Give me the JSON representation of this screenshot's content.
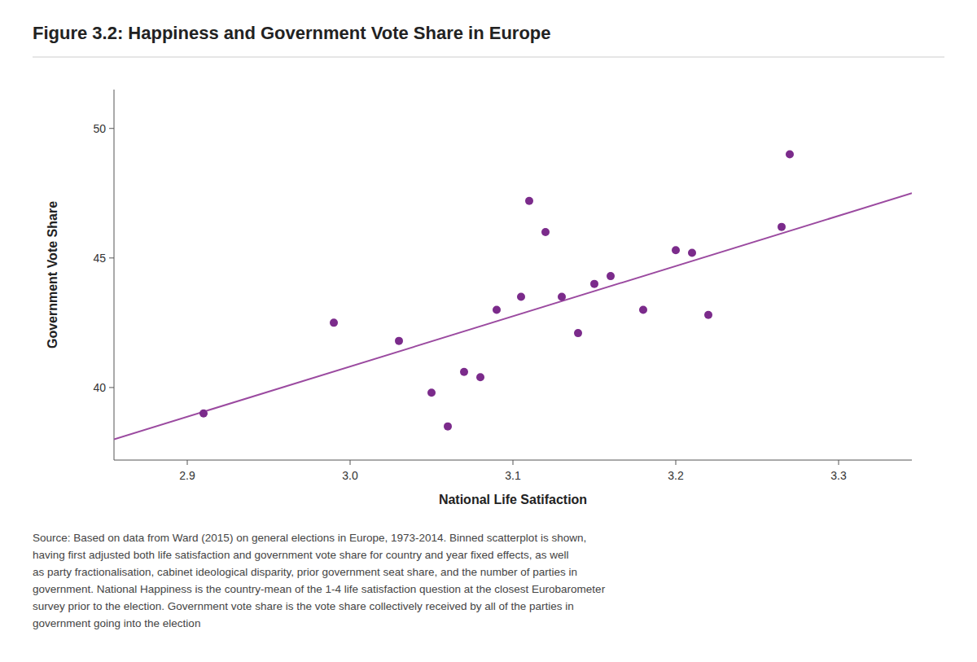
{
  "chart_data": {
    "type": "scatter",
    "title": "Figure 3.2: Happiness and Government Vote Share in Europe",
    "x_label": "National Life Satifaction",
    "y_label": "Government Vote Share",
    "series": [
      {
        "type": "scatter",
        "color": "#7B2B8B",
        "x": [
          2.91,
          2.99,
          3.03,
          3.05,
          3.06,
          3.07,
          3.08,
          3.09,
          3.105,
          3.11,
          3.12,
          3.13,
          3.14,
          3.15,
          3.16,
          3.18,
          3.2,
          3.21,
          3.22,
          3.265,
          3.27
        ],
        "values": [
          39.0,
          42.5,
          41.8,
          39.8,
          38.5,
          40.6,
          40.4,
          43.0,
          43.5,
          47.2,
          46.0,
          43.5,
          42.1,
          44.0,
          44.3,
          43.0,
          45.3,
          45.2,
          42.8,
          46.2,
          49.0
        ]
      },
      {
        "type": "line",
        "color": "#9B4AA0",
        "x": [
          2.855,
          3.345
        ],
        "values": [
          38.0,
          47.5
        ]
      }
    ],
    "xlim": [
      2.855,
      3.345
    ],
    "ylim": [
      37.2,
      51.5
    ],
    "xticks": [
      {
        "value": 2.9,
        "label": "2.9"
      },
      {
        "value": 3.0,
        "label": "3.0"
      },
      {
        "value": 3.1,
        "label": "3.1"
      },
      {
        "value": 3.2,
        "label": "3.2"
      },
      {
        "value": 3.3,
        "label": "3.3"
      }
    ],
    "yticks": [
      40,
      45,
      50
    ],
    "grid": false,
    "source": "Source: Based on data from Ward (2015) on general elections in Europe, 1973-2014. Binned scatterplot is shown,\nhaving first adjusted both life satisfaction and government vote share for country and year fixed effects, as well\nas party fractionalisation, cabinet ideological disparity, prior government seat share, and the number of parties in\ngovernment. National Happiness is the country-mean of the 1-4 life satisfaction question at the closest Eurobarometer\nsurvey prior to the election. Government vote share is the vote share collectively received by all of the parties in\ngovernment going into the election"
  }
}
